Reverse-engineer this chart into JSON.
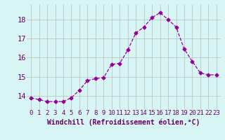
{
  "hours": [
    0,
    1,
    2,
    3,
    4,
    5,
    6,
    7,
    8,
    9,
    10,
    11,
    12,
    13,
    14,
    15,
    16,
    17,
    18,
    19,
    20,
    21,
    22,
    23
  ],
  "values": [
    13.9,
    13.8,
    13.7,
    13.7,
    13.7,
    13.9,
    14.3,
    14.8,
    14.9,
    14.95,
    15.65,
    15.7,
    16.4,
    17.3,
    17.6,
    18.1,
    18.35,
    18.0,
    17.6,
    16.45,
    15.8,
    15.2,
    15.1,
    15.1
  ],
  "line_color": "#990099",
  "marker": "D",
  "marker_size": 2.5,
  "bg_color": "#d8f5f5",
  "grid_color": "#bbbbbb",
  "xlabel": "Windchill (Refroidissement éolien,°C)",
  "xlabel_color": "#660066",
  "xlabel_fontsize": 7,
  "yticks": [
    14,
    15,
    16,
    17,
    18
  ],
  "ylim": [
    13.3,
    18.8
  ],
  "xlim": [
    -0.5,
    23.5
  ],
  "tick_label_color": "#660066",
  "tick_label_fontsize": 6.5
}
